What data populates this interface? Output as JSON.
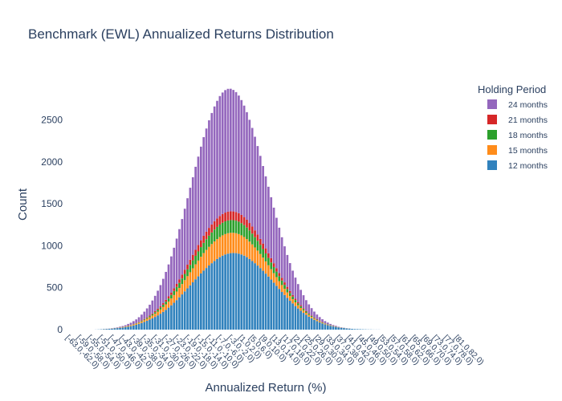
{
  "chart_data": {
    "type": "bar",
    "stacked": true,
    "title": "Benchmark (EWL) Annualized Returns Distribution",
    "xlabel": "Annualized Return (%)",
    "ylabel": "Count",
    "ylim": [
      0,
      2820
    ],
    "yticks": [
      0,
      500,
      1000,
      1500,
      2000,
      2500
    ],
    "grid": false,
    "legend": {
      "title": "Holding Period",
      "placement": "top-right",
      "order": [
        "24 months",
        "21 months",
        "18 months",
        "15 months",
        "12 months"
      ]
    },
    "categories": [
      "[-63.0,-62.0)",
      "[-62.0,-61.0)",
      "[-61.0,-60.0)",
      "[-60.0,-59.0)",
      "[-59.0,-58.0)",
      "[-58.0,-57.0)",
      "[-57.0,-56.0)",
      "[-56.0,-55.0)",
      "[-55.0,-54.0)",
      "[-54.0,-53.0)",
      "[-53.0,-52.0)",
      "[-52.0,-51.0)",
      "[-51.0,-50.0)",
      "[-50.0,-49.0)",
      "[-49.0,-48.0)",
      "[-48.0,-47.0)",
      "[-47.0,-46.0)",
      "[-46.0,-45.0)",
      "[-45.0,-44.0)",
      "[-44.0,-43.0)",
      "[-43.0,-42.0)",
      "[-42.0,-41.0)",
      "[-41.0,-40.0)",
      "[-40.0,-39.0)",
      "[-39.0,-38.0)",
      "[-38.0,-37.0)",
      "[-37.0,-36.0)",
      "[-36.0,-35.0)",
      "[-35.0,-34.0)",
      "[-34.0,-33.0)",
      "[-33.0,-32.0)",
      "[-32.0,-31.0)",
      "[-31.0,-30.0)",
      "[-30.0,-29.0)",
      "[-29.0,-28.0)",
      "[-28.0,-27.0)",
      "[-27.0,-26.0)",
      "[-26.0,-25.0)",
      "[-25.0,-24.0)",
      "[-24.0,-23.0)",
      "[-23.0,-22.0)",
      "[-22.0,-21.0)",
      "[-21.0,-20.0)",
      "[-20.0,-19.0)",
      "[-19.0,-18.0)",
      "[-18.0,-17.0)",
      "[-17.0,-16.0)",
      "[-16.0,-15.0)",
      "[-15.0,-14.0)",
      "[-14.0,-13.0)",
      "[-13.0,-12.0)",
      "[-12.0,-11.0)",
      "[-11.0,-10.0)",
      "[-10.0,-9.0)",
      "[-9.0,-8.0)",
      "[-8.0,-7.0)",
      "[-7.0,-6.0)",
      "[-6.0,-5.0)",
      "[-5.0,-4.0)",
      "[-4.0,-3.0)",
      "[-3.0,-2.0)",
      "[-2.0,-1.0)",
      "[-1.0,0.0)",
      "[0.0,1.0)",
      "[1.0,2.0)",
      "[2.0,3.0)",
      "[3.0,4.0)",
      "[4.0,5.0)",
      "[5.0,6.0)",
      "[6.0,7.0)",
      "[7.0,8.0)",
      "[8.0,9.0)",
      "[9.0,10.0)",
      "[10.0,11.0)",
      "[11.0,12.0)",
      "[12.0,13.0)",
      "[13.0,14.0)",
      "[14.0,15.0)",
      "[15.0,16.0)",
      "[16.0,17.0)",
      "[17.0,18.0)",
      "[18.0,19.0)",
      "[19.0,20.0)",
      "[20.0,21.0)",
      "[21.0,22.0)",
      "[22.0,23.0)",
      "[23.0,24.0)",
      "[24.0,25.0)",
      "[25.0,26.0)",
      "[26.0,27.0)",
      "[27.0,28.0)",
      "[28.0,29.0)",
      "[29.0,30.0)",
      "[30.0,31.0)",
      "[31.0,32.0)",
      "[32.0,33.0)",
      "[33.0,34.0)",
      "[34.0,35.0)",
      "[35.0,36.0)",
      "[36.0,37.0)",
      "[37.0,38.0)",
      "[38.0,39.0)",
      "[39.0,40.0)",
      "[40.0,41.0)",
      "[41.0,42.0)",
      "[42.0,43.0)",
      "[43.0,44.0)",
      "[44.0,45.0)",
      "[45.0,46.0)",
      "[46.0,47.0)",
      "[47.0,48.0)",
      "[48.0,49.0)",
      "[49.0,50.0)",
      "[50.0,51.0)",
      "[51.0,52.0)",
      "[52.0,53.0)",
      "[53.0,54.0)",
      "[54.0,55.0)",
      "[55.0,56.0)",
      "[56.0,57.0)",
      "[57.0,58.0)",
      "[58.0,59.0)",
      "[59.0,60.0)",
      "[60.0,61.0)",
      "[61.0,62.0)",
      "[62.0,63.0)",
      "[63.0,64.0)",
      "[64.0,65.0)",
      "[65.0,66.0)",
      "[66.0,67.0)",
      "[67.0,68.0)",
      "[68.0,69.0)",
      "[69.0,70.0)",
      "[70.0,71.0)",
      "[71.0,72.0)",
      "[72.0,73.0)",
      "[73.0,74.0)",
      "[74.0,75.0)",
      "[75.0,76.0)",
      "[76.0,77.0)",
      "[77.0,78.0)",
      "[78.0,79.0)",
      "[79.0,80.0)",
      "[80.0,81.0)",
      "[81.0,82.0)",
      "[82.0,83.0)",
      "[83.0,84.0)"
    ],
    "xtick_labels_shown": [
      "[-63.0,-62.0)",
      "[-59.0,-58.0)",
      "[-55.0,-54.0)",
      "[-51.0,-50.0)",
      "[-47.0,-46.0)",
      "[-43.0,-42.0)",
      "[-39.0,-38.0)",
      "[-35.0,-34.0)",
      "[-31.0,-30.0)",
      "[-27.0,-26.0)",
      "[-23.0,-22.0)",
      "[-19.0,-18.0)",
      "[-15.0,-14.0)",
      "[-11.0,-10.0)",
      "[-7.0,-6.0)",
      "[-3.0,-2.0)",
      "[1.0,2.0)",
      "[5.0,6.0)",
      "[9.0,10.0)",
      "[13.0,14.0)",
      "[17.0,18.0)",
      "[21.0,22.0)",
      "[25.0,26.0)",
      "[29.0,30.0)",
      "[33.0,34.0)",
      "[37.0,38.0)",
      "[41.0,42.0)",
      "[45.0,46.0)",
      "[49.0,50.0)",
      "[53.0,54.0)",
      "[57.0,58.0)",
      "[61.0,62.0)",
      "[65.0,66.0)",
      "[69.0,70.0)",
      "[73.0,74.0)",
      "[77.0,78.0)",
      "[81.0,82.0)"
    ],
    "series": [
      {
        "name": "12 months",
        "color": "#3182bd",
        "values": [
          0,
          0,
          0,
          0,
          0,
          0,
          0,
          0,
          0,
          0,
          1,
          2,
          4,
          6,
          8,
          10,
          12,
          15,
          18,
          22,
          25,
          30,
          36,
          42,
          50,
          58,
          68,
          80,
          92,
          105,
          120,
          135,
          152,
          170,
          190,
          212,
          236,
          262,
          290,
          320,
          352,
          385,
          420,
          456,
          492,
          528,
          564,
          600,
          635,
          670,
          705,
          735,
          765,
          792,
          818,
          842,
          864,
          882,
          896,
          906,
          912,
          914,
          912,
          906,
          896,
          882,
          864,
          842,
          818,
          792,
          764,
          734,
          702,
          668,
          633,
          597,
          560,
          523,
          486,
          449,
          413,
          378,
          344,
          312,
          281,
          252,
          225,
          200,
          176,
          155,
          135,
          117,
          101,
          87,
          74,
          63,
          53,
          45,
          38,
          32,
          26,
          22,
          18,
          14,
          12,
          9,
          7,
          6,
          5,
          4,
          3,
          2,
          2,
          1,
          1,
          1,
          0,
          0,
          0,
          0,
          0,
          0,
          0,
          0,
          0,
          0,
          0,
          0,
          0,
          0,
          0,
          0,
          0,
          0,
          0,
          0,
          0,
          0,
          0,
          0,
          0,
          0,
          0,
          0,
          0,
          0,
          0
        ]
      },
      {
        "name": "15 months",
        "color": "#ff8c1a",
        "values": [
          0,
          0,
          0,
          0,
          0,
          0,
          0,
          0,
          0,
          0,
          0,
          0,
          0,
          1,
          1,
          1,
          2,
          2,
          3,
          4,
          5,
          6,
          7,
          9,
          10,
          12,
          14,
          17,
          20,
          24,
          28,
          33,
          38,
          44,
          50,
          57,
          65,
          73,
          82,
          92,
          102,
          112,
          123,
          134,
          145,
          156,
          167,
          178,
          188,
          198,
          207,
          215,
          222,
          228,
          233,
          237,
          240,
          242,
          243,
          243,
          242,
          240,
          237,
          233,
          228,
          222,
          215,
          207,
          198,
          188,
          178,
          167,
          156,
          145,
          134,
          123,
          112,
          102,
          92,
          82,
          73,
          65,
          57,
          50,
          44,
          38,
          33,
          28,
          24,
          20,
          17,
          14,
          12,
          10,
          8,
          7,
          6,
          5,
          4,
          3,
          2,
          2,
          1,
          1,
          1,
          0,
          0,
          0,
          0,
          0,
          0,
          0,
          0,
          0,
          0,
          0,
          0,
          0,
          0,
          0,
          0,
          0,
          0,
          0,
          0,
          0,
          0,
          0,
          0,
          0,
          0,
          0,
          0,
          0,
          0,
          0,
          0,
          0,
          0,
          0,
          0,
          0,
          0,
          0,
          0,
          0,
          0
        ]
      },
      {
        "name": "18 months",
        "color": "#2ca02c",
        "values": [
          0,
          0,
          0,
          0,
          0,
          0,
          0,
          0,
          0,
          0,
          0,
          0,
          0,
          0,
          0,
          0,
          0,
          1,
          1,
          1,
          2,
          2,
          3,
          3,
          4,
          5,
          6,
          7,
          9,
          11,
          13,
          15,
          18,
          21,
          24,
          28,
          32,
          37,
          42,
          48,
          54,
          60,
          67,
          74,
          81,
          88,
          95,
          102,
          109,
          116,
          122,
          128,
          133,
          138,
          142,
          145,
          148,
          150,
          151,
          152,
          152,
          151,
          150,
          148,
          145,
          142,
          138,
          133,
          128,
          122,
          116,
          109,
          102,
          95,
          88,
          81,
          74,
          67,
          60,
          54,
          48,
          42,
          37,
          32,
          28,
          24,
          21,
          18,
          15,
          13,
          11,
          9,
          7,
          6,
          5,
          4,
          3,
          3,
          2,
          2,
          1,
          1,
          1,
          0,
          0,
          0,
          0,
          0,
          0,
          0,
          0,
          0,
          0,
          0,
          0,
          0,
          0,
          0,
          0,
          0,
          0,
          0,
          0,
          0,
          0,
          0,
          0,
          0,
          0,
          0,
          0,
          0,
          0,
          0,
          0,
          0,
          0,
          0,
          0,
          0,
          0,
          0,
          0,
          0,
          0,
          0,
          0
        ]
      },
      {
        "name": "21 months",
        "color": "#d62728",
        "values": [
          0,
          0,
          0,
          0,
          0,
          0,
          0,
          0,
          0,
          0,
          0,
          0,
          0,
          0,
          0,
          0,
          0,
          0,
          0,
          1,
          1,
          1,
          2,
          2,
          3,
          3,
          4,
          5,
          6,
          7,
          8,
          10,
          12,
          14,
          16,
          19,
          22,
          25,
          29,
          33,
          37,
          41,
          46,
          51,
          56,
          61,
          66,
          71,
          76,
          81,
          85,
          89,
          93,
          96,
          99,
          101,
          103,
          104,
          105,
          105,
          105,
          104,
          103,
          101,
          99,
          96,
          93,
          89,
          85,
          81,
          76,
          71,
          66,
          61,
          56,
          51,
          46,
          41,
          37,
          33,
          29,
          25,
          22,
          19,
          16,
          14,
          12,
          10,
          8,
          7,
          6,
          5,
          4,
          3,
          3,
          2,
          2,
          1,
          1,
          1,
          0,
          0,
          0,
          0,
          0,
          0,
          0,
          0,
          0,
          0,
          0,
          0,
          0,
          0,
          0,
          0,
          0,
          0,
          0,
          0,
          0,
          0,
          0,
          0,
          0,
          0,
          0,
          0,
          0,
          0,
          0,
          0,
          0,
          0,
          0,
          0,
          0,
          0,
          0,
          0,
          0,
          0,
          0,
          0,
          0,
          0,
          0
        ]
      },
      {
        "name": "24 months",
        "color": "#9467bd",
        "values": [
          0,
          0,
          0,
          0,
          0,
          0,
          0,
          0,
          0,
          0,
          0,
          0,
          0,
          0,
          1,
          1,
          2,
          3,
          5,
          7,
          10,
          14,
          20,
          26,
          34,
          44,
          56,
          70,
          87,
          106,
          128,
          154,
          183,
          215,
          251,
          290,
          333,
          380,
          430,
          483,
          540,
          600,
          662,
          726,
          792,
          858,
          924,
          990,
          1054,
          1116,
          1175,
          1230,
          1282,
          1328,
          1368,
          1402,
          1429,
          1448,
          1460,
          1464,
          1460,
          1448,
          1429,
          1402,
          1368,
          1328,
          1282,
          1230,
          1175,
          1116,
          1054,
          990,
          924,
          858,
          792,
          726,
          662,
          600,
          540,
          483,
          430,
          380,
          333,
          290,
          251,
          215,
          183,
          154,
          128,
          106,
          87,
          70,
          56,
          44,
          34,
          26,
          20,
          14,
          10,
          7,
          5,
          3,
          2,
          1,
          1,
          0,
          0,
          0,
          0,
          0,
          0,
          0,
          0,
          0,
          0,
          0,
          0,
          0,
          0,
          0,
          0,
          0,
          0,
          0,
          0,
          0,
          0,
          0,
          0,
          0,
          0,
          0,
          0,
          0,
          0,
          0,
          0,
          0,
          0,
          0,
          0,
          0,
          0,
          0,
          0,
          0,
          0
        ]
      }
    ]
  }
}
